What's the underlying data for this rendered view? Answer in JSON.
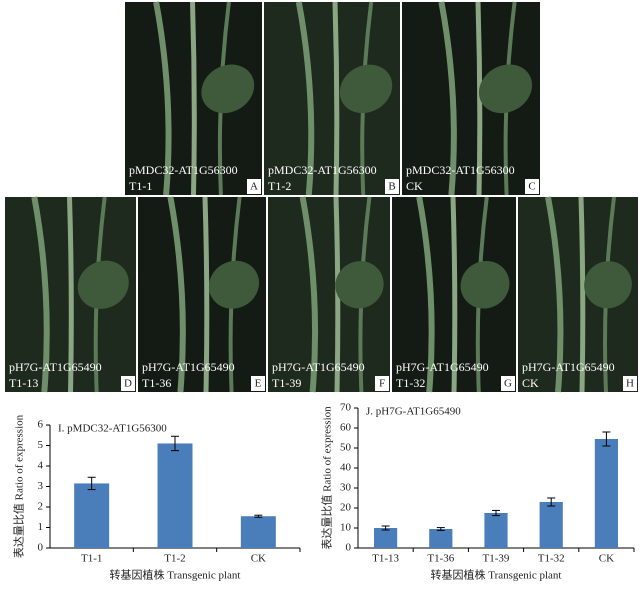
{
  "panels": [
    {
      "lines": [
        "pMDC32-AT1G56300",
        "T1-1"
      ],
      "letter": "A"
    },
    {
      "lines": [
        "pMDC32-AT1G56300",
        "T1-2"
      ],
      "letter": "B"
    },
    {
      "lines": [
        "pMDC32-AT1G56300",
        "CK"
      ],
      "letter": "C"
    },
    {
      "lines": [
        "pH7G-AT1G65490",
        "T1-13"
      ],
      "letter": "D"
    },
    {
      "lines": [
        "pH7G-AT1G65490",
        "T1-36"
      ],
      "letter": "E"
    },
    {
      "lines": [
        "pH7G-AT1G65490",
        "T1-39"
      ],
      "letter": "F"
    },
    {
      "lines": [
        "pH7G-AT1G65490",
        "T1-32"
      ],
      "letter": "G"
    },
    {
      "lines": [
        "pH7G-AT1G65490",
        "CK"
      ],
      "letter": "H"
    }
  ],
  "chart_data": [
    {
      "type": "bar",
      "title": "I. pMDC32-AT1G56300",
      "y_label": "表达量比值 Ratio of expression",
      "x_label": "转基因植株 Transgenic plant",
      "categories": [
        "T1-1",
        "T1-2",
        "CK"
      ],
      "values": [
        3.15,
        5.1,
        1.55
      ],
      "errors": [
        0.3,
        0.35,
        0.05
      ],
      "color": "#4a7ebb",
      "ylim": [
        0,
        6
      ],
      "yticks": [
        0,
        1,
        2,
        3,
        4,
        5,
        6
      ]
    },
    {
      "type": "bar",
      "title": "J. pH7G-AT1G65490",
      "y_label": "表达量比值 Ratio of expression",
      "x_label": "转基因植株 Transgenic plant",
      "categories": [
        "T1-13",
        "T1-36",
        "T1-39",
        "T1-32",
        "CK"
      ],
      "values": [
        10,
        9.5,
        17.5,
        23,
        54.5
      ],
      "errors": [
        1,
        0.7,
        1.3,
        2,
        3.5
      ],
      "color": "#4a7ebb",
      "ylim": [
        0,
        70
      ],
      "yticks": [
        0,
        10,
        20,
        30,
        40,
        50,
        60,
        70
      ]
    }
  ]
}
